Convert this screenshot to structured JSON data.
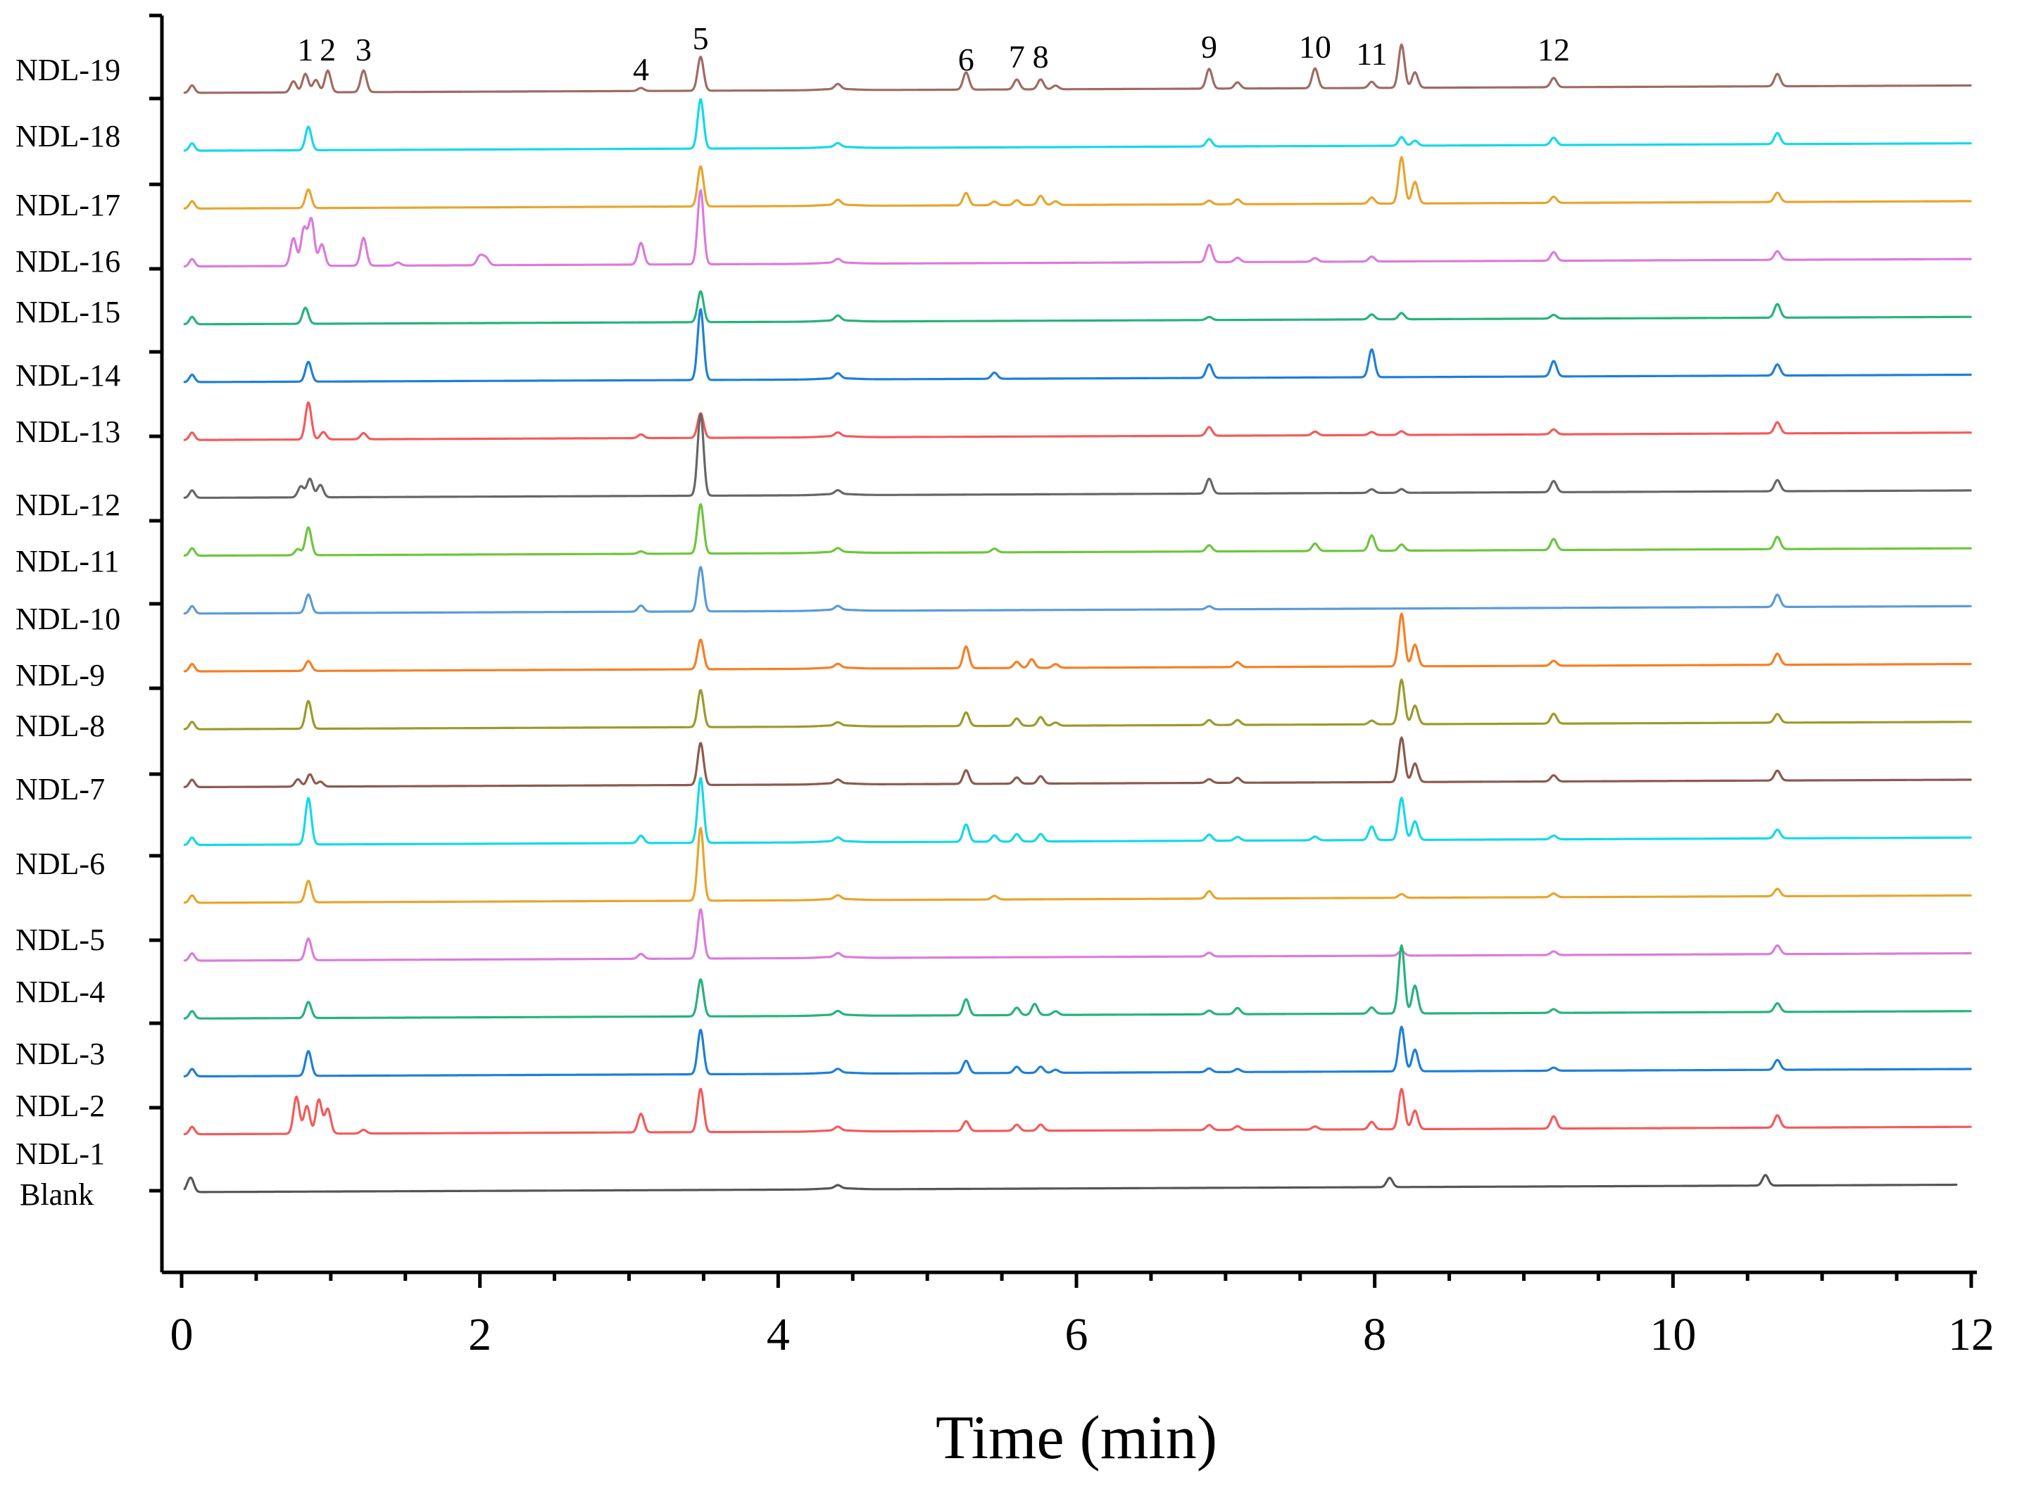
{
  "chart_data": {
    "type": "line",
    "title": "",
    "xlabel": "Time (min)",
    "ylabel": "",
    "xlim": [
      0,
      12
    ],
    "x_ticks": [
      "0",
      "2",
      "4",
      "6",
      "8",
      "10",
      "12"
    ],
    "peak_labels": [
      {
        "label": "1",
        "x": 0.83
      },
      {
        "label": "2",
        "x": 0.98
      },
      {
        "label": "3",
        "x": 1.22
      },
      {
        "label": "4",
        "x": 3.08
      },
      {
        "label": "5",
        "x": 3.48
      },
      {
        "label": "6",
        "x": 5.26
      },
      {
        "label": "7",
        "x": 5.6
      },
      {
        "label": "8",
        "x": 5.76
      },
      {
        "label": "9",
        "x": 6.89
      },
      {
        "label": "10",
        "x": 7.6
      },
      {
        "label": "11",
        "x": 7.98
      },
      {
        "label": "12",
        "x": 9.2
      }
    ],
    "series": [
      {
        "name": "NDL-19",
        "color": "#9E6B63",
        "peaks": [
          [
            0.75,
            0.18
          ],
          [
            0.83,
            0.3
          ],
          [
            0.9,
            0.2
          ],
          [
            0.98,
            0.35
          ],
          [
            1.22,
            0.35
          ],
          [
            3.08,
            0.05
          ],
          [
            3.48,
            0.55
          ],
          [
            4.4,
            0.08
          ],
          [
            5.26,
            0.28
          ],
          [
            5.6,
            0.16
          ],
          [
            5.76,
            0.16
          ],
          [
            5.86,
            0.06
          ],
          [
            6.89,
            0.32
          ],
          [
            7.08,
            0.1
          ],
          [
            7.6,
            0.32
          ],
          [
            7.98,
            0.1
          ],
          [
            8.18,
            0.7
          ],
          [
            8.27,
            0.25
          ],
          [
            9.2,
            0.15
          ],
          [
            10.7,
            0.2
          ]
        ]
      },
      {
        "name": "NDL-18",
        "color": "#14D8E8",
        "peaks": [
          [
            0.85,
            0.38
          ],
          [
            3.48,
            0.8
          ],
          [
            4.4,
            0.06
          ],
          [
            6.89,
            0.12
          ],
          [
            8.18,
            0.14
          ],
          [
            8.27,
            0.08
          ],
          [
            9.2,
            0.12
          ],
          [
            10.7,
            0.18
          ]
        ]
      },
      {
        "name": "NDL-17",
        "color": "#E6A52E",
        "peaks": [
          [
            0.85,
            0.3
          ],
          [
            3.48,
            0.65
          ],
          [
            4.4,
            0.08
          ],
          [
            5.26,
            0.2
          ],
          [
            5.45,
            0.06
          ],
          [
            5.6,
            0.08
          ],
          [
            5.76,
            0.15
          ],
          [
            5.86,
            0.06
          ],
          [
            6.89,
            0.06
          ],
          [
            7.08,
            0.08
          ],
          [
            7.98,
            0.1
          ],
          [
            8.18,
            0.75
          ],
          [
            8.27,
            0.35
          ],
          [
            9.2,
            0.1
          ],
          [
            10.7,
            0.15
          ]
        ]
      },
      {
        "name": "NDL-16",
        "color": "#DA7BDC",
        "peaks": [
          [
            0.75,
            0.45
          ],
          [
            0.82,
            0.6
          ],
          [
            0.87,
            0.75
          ],
          [
            0.94,
            0.35
          ],
          [
            1.22,
            0.45
          ],
          [
            1.45,
            0.05
          ],
          [
            2.0,
            0.15
          ],
          [
            2.04,
            0.12
          ],
          [
            3.08,
            0.35
          ],
          [
            3.48,
            1.2
          ],
          [
            4.4,
            0.06
          ],
          [
            6.89,
            0.28
          ],
          [
            7.08,
            0.07
          ],
          [
            7.6,
            0.06
          ],
          [
            7.98,
            0.08
          ],
          [
            9.2,
            0.14
          ],
          [
            10.7,
            0.14
          ]
        ]
      },
      {
        "name": "NDL-15",
        "color": "#26B27C",
        "peaks": [
          [
            0.83,
            0.26
          ],
          [
            3.48,
            0.5
          ],
          [
            4.4,
            0.08
          ],
          [
            6.89,
            0.05
          ],
          [
            7.98,
            0.08
          ],
          [
            8.18,
            0.1
          ],
          [
            9.2,
            0.06
          ],
          [
            10.7,
            0.22
          ]
        ]
      },
      {
        "name": "NDL-14",
        "color": "#1E7FD7",
        "peaks": [
          [
            0.85,
            0.32
          ],
          [
            3.48,
            1.15
          ],
          [
            4.4,
            0.08
          ],
          [
            5.45,
            0.1
          ],
          [
            6.89,
            0.22
          ],
          [
            7.98,
            0.45
          ],
          [
            9.2,
            0.25
          ],
          [
            10.7,
            0.18
          ]
        ]
      },
      {
        "name": "NDL-13",
        "color": "#F45A5A",
        "peaks": [
          [
            0.85,
            0.6
          ],
          [
            0.95,
            0.12
          ],
          [
            1.22,
            0.1
          ],
          [
            3.08,
            0.06
          ],
          [
            3.48,
            0.4
          ],
          [
            4.4,
            0.06
          ],
          [
            6.89,
            0.14
          ],
          [
            7.6,
            0.06
          ],
          [
            7.98,
            0.05
          ],
          [
            8.18,
            0.06
          ],
          [
            9.2,
            0.08
          ],
          [
            10.7,
            0.18
          ]
        ]
      },
      {
        "name": "NDL-12",
        "color": "#666666",
        "peaks": [
          [
            0.8,
            0.18
          ],
          [
            0.86,
            0.3
          ],
          [
            0.93,
            0.2
          ],
          [
            3.48,
            1.32
          ],
          [
            4.4,
            0.06
          ],
          [
            6.89,
            0.24
          ],
          [
            7.98,
            0.06
          ],
          [
            8.18,
            0.06
          ],
          [
            9.2,
            0.18
          ],
          [
            10.7,
            0.18
          ]
        ]
      },
      {
        "name": "NDL-11",
        "color": "#6CC63C",
        "peaks": [
          [
            0.78,
            0.1
          ],
          [
            0.85,
            0.45
          ],
          [
            3.08,
            0.04
          ],
          [
            3.48,
            0.8
          ],
          [
            4.4,
            0.06
          ],
          [
            5.45,
            0.06
          ],
          [
            6.89,
            0.1
          ],
          [
            7.6,
            0.12
          ],
          [
            7.98,
            0.25
          ],
          [
            8.18,
            0.1
          ],
          [
            9.2,
            0.18
          ],
          [
            10.7,
            0.2
          ]
        ]
      },
      {
        "name": "NDL-10",
        "color": "#5A9BD8",
        "peaks": [
          [
            0.85,
            0.3
          ],
          [
            3.08,
            0.1
          ],
          [
            3.48,
            0.72
          ],
          [
            4.4,
            0.06
          ],
          [
            6.89,
            0.05
          ],
          [
            10.7,
            0.2
          ]
        ]
      },
      {
        "name": "NDL-9",
        "color": "#F57F24",
        "peaks": [
          [
            0.85,
            0.16
          ],
          [
            3.48,
            0.48
          ],
          [
            4.4,
            0.06
          ],
          [
            5.26,
            0.35
          ],
          [
            5.6,
            0.1
          ],
          [
            5.7,
            0.14
          ],
          [
            5.86,
            0.06
          ],
          [
            7.08,
            0.08
          ],
          [
            8.18,
            0.85
          ],
          [
            8.27,
            0.35
          ],
          [
            9.2,
            0.08
          ],
          [
            10.7,
            0.18
          ]
        ]
      },
      {
        "name": "NDL-8",
        "color": "#9C9A2C",
        "peaks": [
          [
            0.85,
            0.45
          ],
          [
            3.48,
            0.6
          ],
          [
            4.4,
            0.05
          ],
          [
            5.26,
            0.22
          ],
          [
            5.6,
            0.12
          ],
          [
            5.76,
            0.14
          ],
          [
            5.86,
            0.05
          ],
          [
            6.89,
            0.08
          ],
          [
            7.08,
            0.08
          ],
          [
            7.98,
            0.06
          ],
          [
            8.18,
            0.72
          ],
          [
            8.27,
            0.3
          ],
          [
            9.2,
            0.16
          ],
          [
            10.7,
            0.14
          ]
        ]
      },
      {
        "name": "NDL-7",
        "color": "#8B5A4E",
        "peaks": [
          [
            0.78,
            0.12
          ],
          [
            0.86,
            0.2
          ],
          [
            0.93,
            0.08
          ],
          [
            3.48,
            0.68
          ],
          [
            4.4,
            0.06
          ],
          [
            5.26,
            0.22
          ],
          [
            5.6,
            0.1
          ],
          [
            5.76,
            0.12
          ],
          [
            6.89,
            0.06
          ],
          [
            7.08,
            0.08
          ],
          [
            8.18,
            0.72
          ],
          [
            8.27,
            0.3
          ],
          [
            9.2,
            0.1
          ],
          [
            10.7,
            0.16
          ]
        ]
      },
      {
        "name": "NDL-6",
        "color": "#14D8E8",
        "peaks": [
          [
            0.85,
            0.75
          ],
          [
            3.08,
            0.12
          ],
          [
            3.48,
            1.05
          ],
          [
            4.4,
            0.06
          ],
          [
            5.26,
            0.28
          ],
          [
            5.45,
            0.1
          ],
          [
            5.6,
            0.12
          ],
          [
            5.76,
            0.12
          ],
          [
            6.89,
            0.1
          ],
          [
            7.08,
            0.06
          ],
          [
            7.6,
            0.06
          ],
          [
            7.98,
            0.22
          ],
          [
            8.18,
            0.68
          ],
          [
            8.27,
            0.3
          ],
          [
            9.2,
            0.06
          ],
          [
            10.7,
            0.14
          ]
        ]
      },
      {
        "name": "NDL-5",
        "color": "#E6A52E",
        "peaks": [
          [
            0.85,
            0.35
          ],
          [
            3.48,
            1.18
          ],
          [
            4.4,
            0.06
          ],
          [
            5.45,
            0.06
          ],
          [
            6.89,
            0.12
          ],
          [
            8.18,
            0.06
          ],
          [
            9.2,
            0.06
          ],
          [
            10.7,
            0.12
          ]
        ]
      },
      {
        "name": "NDL-4",
        "color": "#DA7BDC",
        "peaks": [
          [
            0.85,
            0.35
          ],
          [
            3.08,
            0.08
          ],
          [
            3.48,
            0.8
          ],
          [
            4.4,
            0.06
          ],
          [
            6.89,
            0.06
          ],
          [
            8.18,
            0.08
          ],
          [
            9.2,
            0.06
          ],
          [
            10.7,
            0.14
          ]
        ]
      },
      {
        "name": "NDL-3",
        "color": "#26B27C",
        "peaks": [
          [
            0.85,
            0.26
          ],
          [
            3.48,
            0.6
          ],
          [
            4.4,
            0.06
          ],
          [
            5.26,
            0.26
          ],
          [
            5.6,
            0.12
          ],
          [
            5.72,
            0.18
          ],
          [
            5.86,
            0.06
          ],
          [
            6.89,
            0.06
          ],
          [
            7.08,
            0.1
          ],
          [
            7.98,
            0.1
          ],
          [
            8.18,
            1.1
          ],
          [
            8.27,
            0.45
          ],
          [
            9.2,
            0.06
          ],
          [
            10.7,
            0.14
          ]
        ]
      },
      {
        "name": "NDL-2",
        "color": "#1E7FD7",
        "peaks": [
          [
            0.85,
            0.4
          ],
          [
            3.48,
            0.72
          ],
          [
            4.4,
            0.06
          ],
          [
            5.26,
            0.2
          ],
          [
            5.6,
            0.1
          ],
          [
            5.76,
            0.1
          ],
          [
            5.86,
            0.05
          ],
          [
            6.89,
            0.06
          ],
          [
            7.08,
            0.05
          ],
          [
            8.18,
            0.72
          ],
          [
            8.27,
            0.35
          ],
          [
            9.2,
            0.05
          ],
          [
            10.7,
            0.16
          ]
        ]
      },
      {
        "name": "NDL-1",
        "color": "#F45A5A",
        "peaks": [
          [
            0.77,
            0.6
          ],
          [
            0.84,
            0.45
          ],
          [
            0.92,
            0.55
          ],
          [
            0.98,
            0.4
          ],
          [
            1.22,
            0.06
          ],
          [
            3.08,
            0.3
          ],
          [
            3.48,
            0.7
          ],
          [
            4.4,
            0.06
          ],
          [
            5.26,
            0.16
          ],
          [
            5.6,
            0.1
          ],
          [
            5.76,
            0.1
          ],
          [
            6.89,
            0.08
          ],
          [
            7.08,
            0.06
          ],
          [
            7.6,
            0.05
          ],
          [
            7.98,
            0.12
          ],
          [
            8.18,
            0.65
          ],
          [
            8.27,
            0.3
          ],
          [
            9.2,
            0.2
          ],
          [
            10.7,
            0.2
          ]
        ]
      },
      {
        "name": "Blank",
        "color": "#555555",
        "peaks": [
          [
            0.05,
            0.15
          ],
          [
            4.4,
            0.05
          ],
          [
            8.1,
            0.15
          ],
          [
            10.62,
            0.17
          ]
        ]
      }
    ]
  }
}
